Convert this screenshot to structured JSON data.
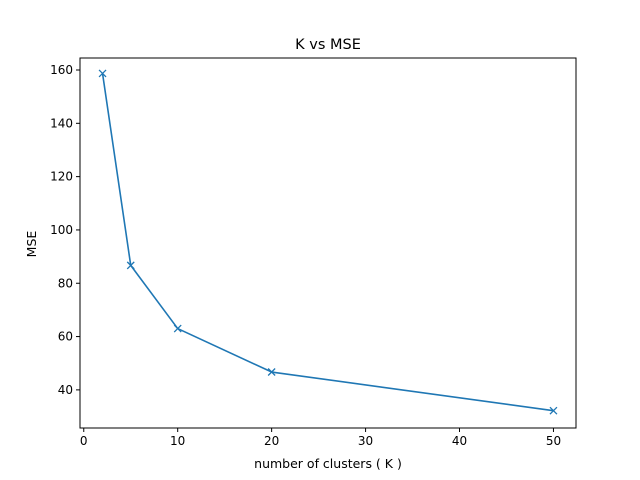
{
  "chart_data": {
    "type": "line",
    "title": "K vs MSE",
    "xlabel": "number of clusters ( K )",
    "ylabel": "MSE",
    "xlim": [
      -0.4,
      52.4
    ],
    "ylim": [
      25.7,
      164.5
    ],
    "xticks": [
      0,
      10,
      20,
      30,
      40,
      50
    ],
    "yticks": [
      40,
      60,
      80,
      100,
      120,
      140,
      160
    ],
    "grid": false,
    "legend": "none",
    "series": [
      {
        "color": "#1f77b4",
        "marker": "x",
        "x": [
          2,
          5,
          10,
          20,
          50
        ],
        "y": [
          158.7,
          86.7,
          63.0,
          46.7,
          32.2
        ]
      }
    ]
  }
}
